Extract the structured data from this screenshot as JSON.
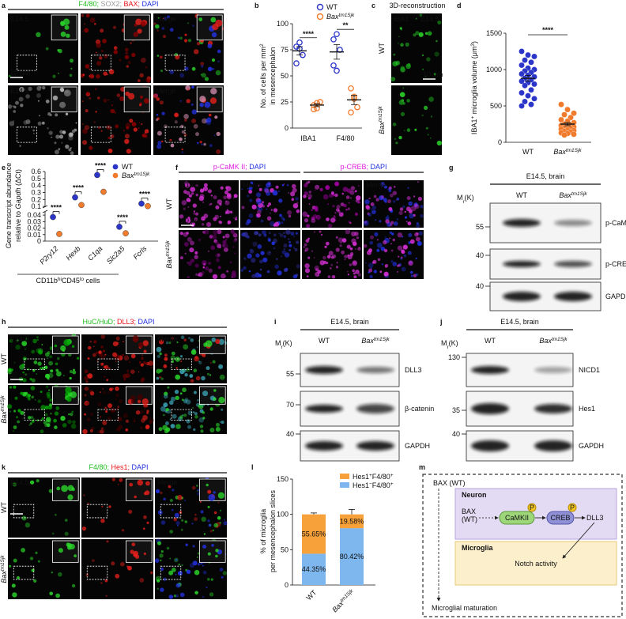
{
  "panel_letters": [
    "a",
    "b",
    "c",
    "d",
    "e",
    "f",
    "g",
    "h",
    "i",
    "j",
    "k",
    "l",
    "m"
  ],
  "labels": {
    "wt": "WT",
    "bax": [
      {
        "text": "Bax",
        "italic": true
      },
      {
        "text": "tm1Sjk",
        "sup": true,
        "italic": true
      }
    ],
    "e145": "E14.5",
    "merge": "Merge",
    "um20": "20 μm",
    "brain": "E14.5, brain",
    "mr": [
      {
        "text": "M"
      },
      {
        "text": "r",
        "sub": true
      },
      {
        "text": "(K)"
      }
    ]
  },
  "a": {
    "header": [
      {
        "text": "F4/80;",
        "color": "#1fbf1f"
      },
      {
        "text": " SOX2;",
        "color": "#9a9a9a"
      },
      {
        "text": " BAX;",
        "color": "#e8141b"
      },
      {
        "text": " DAPI",
        "color": "#1f2fe0"
      }
    ]
  },
  "c": {
    "title": "3D-reconstruction",
    "stain": "IBA1",
    "scale": "10 μm"
  },
  "f": {
    "headers": [
      [
        {
          "text": "p-CaMK II;",
          "color": "#e020e0"
        },
        {
          "text": " DAPI",
          "color": "#1f2fe0"
        }
      ],
      [
        {
          "text": "p-CREB;",
          "color": "#e020e0"
        },
        {
          "text": " DAPI",
          "color": "#1f2fe0"
        }
      ]
    ]
  },
  "g": {
    "markers": [
      55,
      40,
      40
    ],
    "bands": [
      "p-CaMK II",
      "p-CREB",
      "GAPDH"
    ]
  },
  "h": {
    "header": [
      {
        "text": "HuC/HuD;",
        "color": "#1fbf1f"
      },
      {
        "text": " DLL3;",
        "color": "#e8141b"
      },
      {
        "text": " DAPI",
        "color": "#1f2fe0"
      }
    ]
  },
  "i": {
    "markers": [
      55,
      70,
      40
    ],
    "bands": [
      "DLL3",
      "β-catenin",
      "GAPDH"
    ]
  },
  "j": {
    "markers": [
      130,
      35,
      40
    ],
    "bands": [
      "NICD1",
      "Hes1",
      "GAPDH"
    ]
  },
  "k": {
    "header": [
      {
        "text": "F4/80;",
        "color": "#1fbf1f"
      },
      {
        "text": " Hes1;",
        "color": "#e8141b"
      },
      {
        "text": " DAPI",
        "color": "#1f2fe0"
      }
    ]
  },
  "m": {
    "outer": "BAX (WT)",
    "neuron": "Neuron",
    "bax_lines": [
      "BAX",
      "(WT)"
    ],
    "camk": "CaMKII",
    "creb": "CREB",
    "p": "P",
    "dll3": "DLL3",
    "microglia": "Microglia",
    "notch": "Notch activity",
    "maturation": "Microglial maturation"
  },
  "chart_data": [
    {
      "type": "dot-plot",
      "categories": [
        "IBA1",
        "F4/80"
      ],
      "ylabel": [
        [
          {
            "text": "No. of cells per mm"
          },
          {
            "text": "2",
            "sup": true
          }
        ],
        "in mesencephalon"
      ],
      "ylim": [
        0,
        100
      ],
      "yticks": [
        0,
        25,
        50,
        75,
        100
      ],
      "series": [
        {
          "name": "WT",
          "color": "#2b35c8",
          "values": [
            [
              78,
              82,
              70,
              62,
              76
            ],
            [
              85,
              90,
              75,
              60,
              55
            ]
          ],
          "mean": [
            74,
            73
          ],
          "sem": [
            4,
            7
          ]
        },
        {
          "name": [
            {
              "text": "Bax",
              "italic": true
            },
            {
              "text": "tm1Sjk",
              "sup": true,
              "italic": true
            }
          ],
          "color": "#f07b2d",
          "values": [
            [
              22,
              19,
              25,
              18,
              24
            ],
            [
              38,
              30,
              20,
              15,
              28
            ]
          ],
          "mean": [
            22,
            27
          ],
          "sem": [
            1.5,
            4.5
          ]
        }
      ],
      "significance": [
        "****",
        "**"
      ]
    },
    {
      "type": "dot-plot-single",
      "categories": [
        "WT",
        [
          {
            "text": "Bax",
            "italic": true
          },
          {
            "text": "tm1Sjk",
            "sup": true,
            "italic": true
          }
        ]
      ],
      "colors": [
        "#2b35c8",
        "#f07b2d"
      ],
      "ylabel": [
        [
          {
            "text": "IBA1"
          },
          {
            "text": "+",
            "sup": true
          },
          {
            "text": " microglia volume (μm"
          },
          {
            "text": "3",
            "sup": true
          },
          {
            "text": ")"
          }
        ]
      ],
      "ylim": [
        0,
        1500
      ],
      "yticks": [
        0,
        500,
        1000,
        1500
      ],
      "values": [
        [
          1250,
          1200,
          1180,
          1130,
          1100,
          1060,
          1020,
          1000,
          980,
          960,
          940,
          920,
          900,
          880,
          860,
          840,
          820,
          800,
          780,
          720,
          680,
          640,
          600,
          560,
          520,
          500
        ],
        [
          520,
          450,
          400,
          380,
          340,
          310,
          290,
          270,
          250,
          240,
          230,
          220,
          210,
          200,
          190,
          180,
          170,
          160,
          150,
          140,
          130,
          120,
          110,
          100
        ]
      ],
      "mean": [
        880,
        250
      ],
      "sem": [
        40,
        22
      ],
      "significance": "****"
    },
    {
      "type": "broken-axis-dot",
      "categories": [
        "P2ry12",
        "Hexb",
        "C1qa",
        "Slc2a5",
        "Fcrls"
      ],
      "series": [
        {
          "name": "WT",
          "color": "#2b35c8",
          "values": [
            0.037,
            0.23,
            0.55,
            0.022,
            0.14
          ]
        },
        {
          "name": [
            {
              "text": "Bax",
              "italic": true
            },
            {
              "text": "tm1Sjk",
              "sup": true,
              "italic": true
            }
          ],
          "color": "#f07b2d",
          "values": [
            0.011,
            0.12,
            0.31,
            0.012,
            0.105
          ]
        }
      ],
      "ylim_lower": [
        0,
        0.045
      ],
      "yticks_lower": [
        0,
        0.01,
        0.02,
        0.03,
        0.04
      ],
      "ylim_upper": [
        0.09,
        0.6
      ],
      "yticks_upper": [
        0.1,
        0.2,
        0.3,
        0.4,
        0.5,
        0.6
      ],
      "ylabel": [
        "Gene transcript abundance",
        [
          {
            "text": "relative to "
          },
          {
            "text": "Gapdh",
            "italic": true
          },
          {
            "text": " (ΔCt)"
          }
        ]
      ],
      "xlabel": [
        {
          "text": "CD11b"
        },
        {
          "text": "hi",
          "sup": true
        },
        {
          "text": "CD45"
        },
        {
          "text": "lo",
          "sup": true
        },
        {
          "text": " cells"
        }
      ],
      "significance": [
        "****",
        "****",
        "****",
        "****",
        "****"
      ]
    },
    {
      "type": "stacked-bar",
      "categories": [
        "WT",
        [
          {
            "text": "Bax",
            "italic": true
          },
          {
            "text": "tm1Sjk",
            "sup": true,
            "italic": true
          }
        ]
      ],
      "series": [
        {
          "name": [
            {
              "text": "Hes1"
            },
            {
              "text": "−",
              "sup": true
            },
            {
              "text": "F4/80"
            },
            {
              "text": "+",
              "sup": true
            }
          ],
          "color": "#7eb6ee",
          "values": [
            44.35,
            80.42
          ],
          "value_labels": [
            "44.35%",
            "80.42%"
          ],
          "errors": [
            1,
            6
          ]
        },
        {
          "name": [
            {
              "text": "Hes1"
            },
            {
              "text": "+",
              "sup": true
            },
            {
              "text": "F4/80"
            },
            {
              "text": "+",
              "sup": true
            }
          ],
          "color": "#f6a13a",
          "values": [
            55.65,
            19.58
          ],
          "value_labels": [
            "55.65%",
            "19.58%"
          ],
          "errors": [
            2,
            7
          ]
        }
      ],
      "ylabel": [
        "% of microglia",
        "per mesencephalon slices"
      ],
      "ylim": [
        0,
        150
      ],
      "yticks": [
        0,
        50,
        100,
        150
      ]
    }
  ]
}
